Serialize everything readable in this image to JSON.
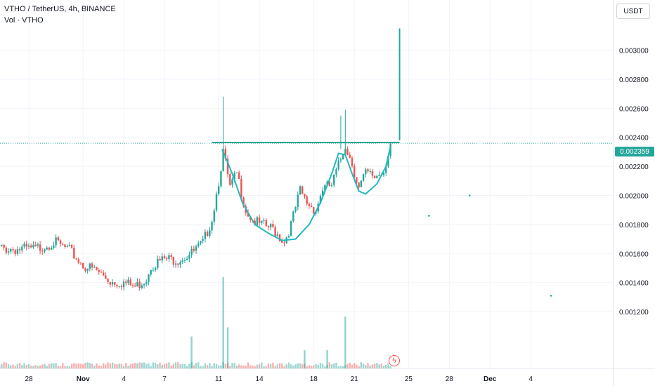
{
  "header": {
    "symbol_line": "VTHO / TetherUS, 4h, BINANCE",
    "volume_label": "Vol · VTHO"
  },
  "price_axis": {
    "unit_button": "USDT",
    "current_price": "0.002359"
  },
  "colors": {
    "up": "#26a69a",
    "down": "#ef5350",
    "line": "#26a69a",
    "cup": "#22b8c0",
    "grid": "#f0f3fa"
  },
  "icons": [
    "flash-icon"
  ],
  "chart_data": {
    "type": "candlestick",
    "title": "VTHO / TetherUS, 4h, BINANCE",
    "ylabel": "",
    "ylim": [
      0.00101,
      0.00346
    ],
    "y_ticks": [
      "0.003000",
      "0.002800",
      "0.002600",
      "0.002400",
      "0.002200",
      "0.002000",
      "0.001800",
      "0.001600",
      "0.001400",
      "0.001200"
    ],
    "y_tick_values": [
      0.003,
      0.0028,
      0.0026,
      0.0024,
      0.0022,
      0.002,
      0.0018,
      0.0016,
      0.0014,
      0.0012
    ],
    "x_ticks": [
      "28",
      "Nov",
      "4",
      "7",
      "11",
      "14",
      "18",
      "21",
      "25",
      "28",
      "Dec",
      "4"
    ],
    "x_tick_days": [
      "2022-10-28",
      "2022-11-01",
      "2022-11-04",
      "2022-11-07",
      "2022-11-11",
      "2022-11-14",
      "2022-11-18",
      "2022-11-21",
      "2022-11-25",
      "2022-11-28",
      "2022-12-01",
      "2022-12-04"
    ],
    "last_price": 0.002359,
    "close_path": [
      {
        "x": "2022-10-25T00:00",
        "y": 0.00164
      },
      {
        "x": "2022-10-27T00:00",
        "y": 0.00163
      },
      {
        "x": "2022-10-28T12:00",
        "y": 0.00163
      },
      {
        "x": "2022-10-29T20:00",
        "y": 0.00168
      },
      {
        "x": "2022-10-31T00:00",
        "y": 0.00162
      },
      {
        "x": "2022-11-01T00:00",
        "y": 0.00152
      },
      {
        "x": "2022-11-02T00:00",
        "y": 0.00148
      },
      {
        "x": "2022-11-03T00:00",
        "y": 0.00141
      },
      {
        "x": "2022-11-04T00:00",
        "y": 0.0014
      },
      {
        "x": "2022-11-04T20:00",
        "y": 0.00137
      },
      {
        "x": "2022-11-05T16:00",
        "y": 0.00143
      },
      {
        "x": "2022-11-06T00:00",
        "y": 0.00152
      },
      {
        "x": "2022-11-07T00:00",
        "y": 0.00156
      },
      {
        "x": "2022-11-08T00:00",
        "y": 0.00156
      },
      {
        "x": "2022-11-09T00:00",
        "y": 0.0016
      },
      {
        "x": "2022-11-09T20:00",
        "y": 0.00167
      },
      {
        "x": "2022-11-10T12:00",
        "y": 0.00184
      },
      {
        "x": "2022-11-11T00:00",
        "y": 0.0021
      },
      {
        "x": "2022-11-11T08:00",
        "y": 0.0023
      },
      {
        "x": "2022-11-11T20:00",
        "y": 0.00205
      },
      {
        "x": "2022-11-12T08:00",
        "y": 0.00215
      },
      {
        "x": "2022-11-13T00:00",
        "y": 0.0019
      },
      {
        "x": "2022-11-13T12:00",
        "y": 0.00183
      },
      {
        "x": "2022-11-14T00:00",
        "y": 0.0018
      },
      {
        "x": "2022-11-15T00:00",
        "y": 0.00177
      },
      {
        "x": "2022-11-15T20:00",
        "y": 0.00168
      },
      {
        "x": "2022-11-16T08:00",
        "y": 0.0018
      },
      {
        "x": "2022-11-17T00:00",
        "y": 0.00203
      },
      {
        "x": "2022-11-17T12:00",
        "y": 0.00195
      },
      {
        "x": "2022-11-18T04:00",
        "y": 0.0019
      },
      {
        "x": "2022-11-18T16:00",
        "y": 0.00205
      },
      {
        "x": "2022-11-19T08:00",
        "y": 0.00207
      },
      {
        "x": "2022-11-20T00:00",
        "y": 0.00225
      },
      {
        "x": "2022-11-20T08:00",
        "y": 0.00235
      },
      {
        "x": "2022-11-20T20:00",
        "y": 0.00222
      },
      {
        "x": "2022-11-21T08:00",
        "y": 0.00205
      },
      {
        "x": "2022-11-21T20:00",
        "y": 0.00215
      },
      {
        "x": "2022-11-22T12:00",
        "y": 0.00213
      },
      {
        "x": "2022-11-23T04:00",
        "y": 0.00217
      },
      {
        "x": "2022-11-23T16:00",
        "y": 0.00236
      }
    ],
    "wicks": [
      {
        "x": "2022-11-11T08:00",
        "high": 0.00268
      },
      {
        "x": "2022-11-20T00:00",
        "high": 0.00255
      },
      {
        "x": "2022-11-20T08:00",
        "high": 0.00259
      }
    ],
    "resistance": {
      "y": 0.002365,
      "from": "2022-11-10T12:00",
      "to": "2022-11-24T08:00"
    },
    "target_line": {
      "x": "2022-11-24T08:00",
      "from": 0.00238,
      "to": 0.00315
    },
    "cup_path": [
      {
        "x": "2022-11-11T06:00",
        "y": 0.00232
      },
      {
        "x": "2022-11-12T00:00",
        "y": 0.00215
      },
      {
        "x": "2022-11-12T18:00",
        "y": 0.00195
      },
      {
        "x": "2022-11-13T16:00",
        "y": 0.0018
      },
      {
        "x": "2022-11-14T16:00",
        "y": 0.00174
      },
      {
        "x": "2022-11-15T16:00",
        "y": 0.00169
      },
      {
        "x": "2022-11-16T16:00",
        "y": 0.0017
      },
      {
        "x": "2022-11-17T16:00",
        "y": 0.0018
      },
      {
        "x": "2022-11-18T12:00",
        "y": 0.00195
      },
      {
        "x": "2022-11-19T08:00",
        "y": 0.00215
      },
      {
        "x": "2022-11-19T20:00",
        "y": 0.00229
      },
      {
        "x": "2022-11-20T08:00",
        "y": 0.00228
      },
      {
        "x": "2022-11-20T20:00",
        "y": 0.00215
      },
      {
        "x": "2022-11-21T08:00",
        "y": 0.00203
      },
      {
        "x": "2022-11-21T20:00",
        "y": 0.00201
      },
      {
        "x": "2022-11-22T16:00",
        "y": 0.00208
      },
      {
        "x": "2022-11-23T08:00",
        "y": 0.0022
      },
      {
        "x": "2022-11-23T16:00",
        "y": 0.00234
      }
    ],
    "dots": [
      {
        "x": "2022-11-26T12:00",
        "y": 0.00186
      },
      {
        "x": "2022-11-29T12:00",
        "y": 0.002
      },
      {
        "x": "2022-12-05T12:00",
        "y": 0.00131
      }
    ],
    "volume_spikes": [
      {
        "x": "2022-11-09T00:00",
        "rel": 0.35
      },
      {
        "x": "2022-11-11T08:00",
        "rel": 1.0
      },
      {
        "x": "2022-11-11T16:00",
        "rel": 0.45
      },
      {
        "x": "2022-11-17T08:00",
        "rel": 0.2
      },
      {
        "x": "2022-11-19T00:00",
        "rel": 0.2
      },
      {
        "x": "2022-11-20T08:00",
        "rel": 0.57
      }
    ]
  }
}
